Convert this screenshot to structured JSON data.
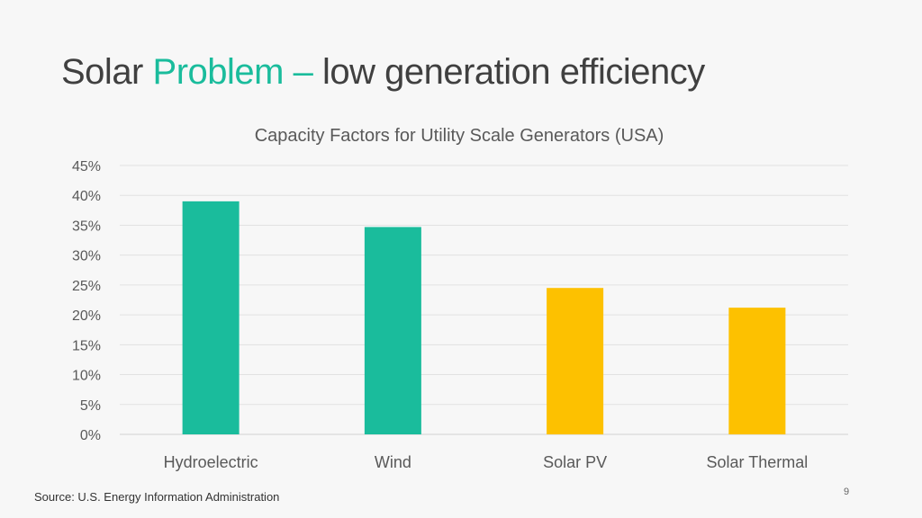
{
  "slide": {
    "title_part1": "Solar",
    "title_accent": "Problem –",
    "title_part2": "low generation efficiency",
    "source": "Source: U.S. Energy Information Administration",
    "page_number": "9"
  },
  "colors": {
    "accent": "#1abc9c",
    "solar": "#fdc100",
    "text": "#404040",
    "grid": "#e2e2e2"
  },
  "chart_data": {
    "type": "bar",
    "title": "Capacity Factors for Utility Scale Generators (USA)",
    "categories": [
      "Hydroelectric",
      "Wind",
      "Solar PV",
      "Solar Thermal"
    ],
    "values": [
      39,
      34.7,
      24.5,
      21.2
    ],
    "bar_colors": [
      "#1abc9c",
      "#1abc9c",
      "#fdc100",
      "#fdc100"
    ],
    "unit": "%",
    "ylim": [
      0,
      45
    ],
    "yticks": [
      0,
      5,
      10,
      15,
      20,
      25,
      30,
      35,
      40,
      45
    ],
    "grid": true,
    "legend": "none"
  }
}
